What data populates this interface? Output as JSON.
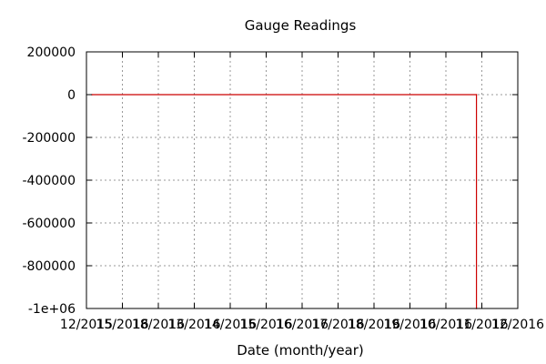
{
  "chart_data": {
    "type": "line",
    "title": "Gauge Readings",
    "xlabel": "Date (month/year)",
    "ylabel": "",
    "x_tick_labels": [
      "12/2015",
      "15/2016",
      "18/2016",
      "13/2016",
      "14/2016",
      "15/2016",
      "16/2016",
      "17/2016",
      "18/2016",
      "19/2016",
      "10/2016",
      "11/2016",
      "12/2016"
    ],
    "xlim": [
      "12/2015",
      "12/2016"
    ],
    "y_tick_labels": [
      "200000",
      "0",
      "-200000",
      "-400000",
      "-600000",
      "-800000",
      "-1e+06"
    ],
    "y_ticks": [
      200000,
      0,
      -200000,
      -400000,
      -600000,
      -800000,
      -1000000
    ],
    "ylim": [
      -1000000,
      200000
    ],
    "grid": true,
    "series": [
      {
        "color": "#cc0000",
        "x": [
          0.15,
          10.85,
          10.85
        ],
        "y": [
          0,
          0,
          -1000000
        ]
      }
    ]
  }
}
